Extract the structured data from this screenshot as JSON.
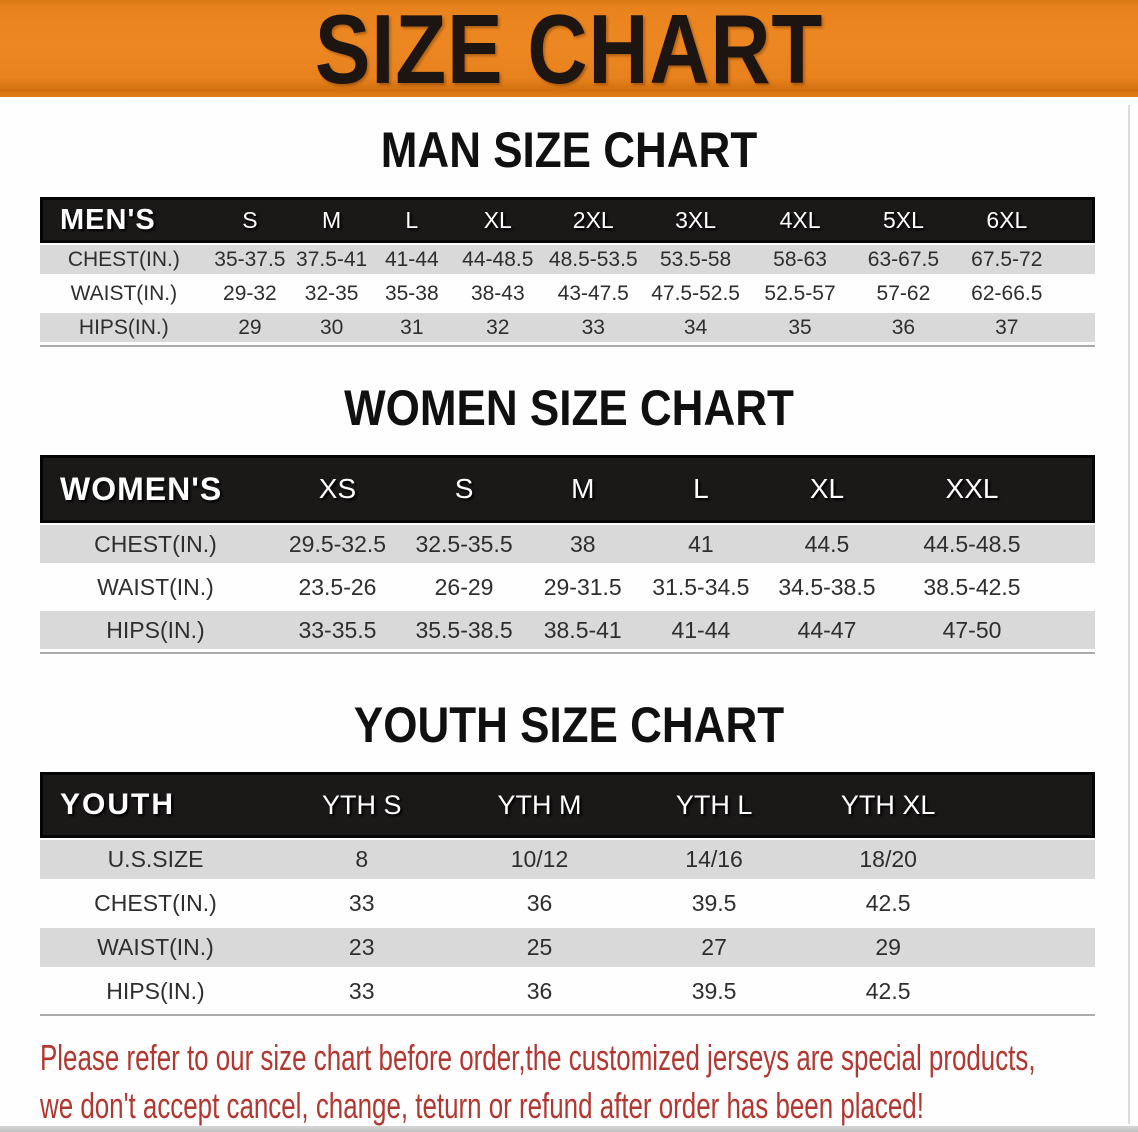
{
  "banner": {
    "title": "SIZE CHART",
    "background_color": "#e8821e",
    "text_color": "#1c1511"
  },
  "sections": [
    {
      "heading": "MAN SIZE CHART",
      "table": {
        "header_label": "MEN'S",
        "columns": [
          "S",
          "M",
          "L",
          "XL",
          "2XL",
          "3XL",
          "4XL",
          "5XL",
          "6XL"
        ],
        "rows": [
          {
            "label": "CHEST(IN.)",
            "values": [
              "35-37.5",
              "37.5-41",
              "41-44",
              "44-48.5",
              "48.5-53.5",
              "53.5-58",
              "58-63",
              "63-67.5",
              "67.5-72"
            ]
          },
          {
            "label": "WAIST(IN.)",
            "values": [
              "29-32",
              "32-35",
              "35-38",
              "38-43",
              "43-47.5",
              "47.5-52.5",
              "52.5-57",
              "57-62",
              "62-66.5"
            ]
          },
          {
            "label": "HIPS(IN.)",
            "values": [
              "29",
              "30",
              "31",
              "32",
              "33",
              "34",
              "35",
              "36",
              "37"
            ]
          }
        ]
      }
    },
    {
      "heading": "WOMEN SIZE CHART",
      "table": {
        "header_label": "WOMEN'S",
        "columns": [
          "XS",
          "S",
          "M",
          "L",
          "XL",
          "XXL"
        ],
        "rows": [
          {
            "label": "CHEST(IN.)",
            "values": [
              "29.5-32.5",
              "32.5-35.5",
              "38",
              "41",
              "44.5",
              "44.5-48.5"
            ]
          },
          {
            "label": "WAIST(IN.)",
            "values": [
              "23.5-26",
              "26-29",
              "29-31.5",
              "31.5-34.5",
              "34.5-38.5",
              "38.5-42.5"
            ]
          },
          {
            "label": "HIPS(IN.)",
            "values": [
              "33-35.5",
              "35.5-38.5",
              "38.5-41",
              "41-44",
              "44-47",
              "47-50"
            ]
          }
        ]
      }
    },
    {
      "heading": "YOUTH SIZE CHART",
      "table": {
        "header_label": "YOUTH",
        "columns": [
          "YTH S",
          "YTH M",
          "YTH L",
          "YTH XL"
        ],
        "rows": [
          {
            "label": "U.S.SIZE",
            "values": [
              "8",
              "10/12",
              "14/16",
              "18/20"
            ]
          },
          {
            "label": "CHEST(IN.)",
            "values": [
              "33",
              "36",
              "39.5",
              "42.5"
            ]
          },
          {
            "label": "WAIST(IN.)",
            "values": [
              "23",
              "25",
              "27",
              "29"
            ]
          },
          {
            "label": "HIPS(IN.)",
            "values": [
              "33",
              "36",
              "39.5",
              "42.5"
            ]
          }
        ]
      }
    }
  ],
  "footer": {
    "line1": "Please refer to our size chart before order,the customized jerseys are special products,",
    "line2": "we don't accept cancel, change, teturn or refund after order has been placed!",
    "text_color": "#b23730"
  },
  "colors": {
    "banner_orange": "#e8821e",
    "header_band_black": "#1b1818",
    "row_gray": "#d9d9d9",
    "row_white": "#fefefe",
    "cell_text": "#2e2e2e",
    "disclaimer_red": "#b23730"
  }
}
